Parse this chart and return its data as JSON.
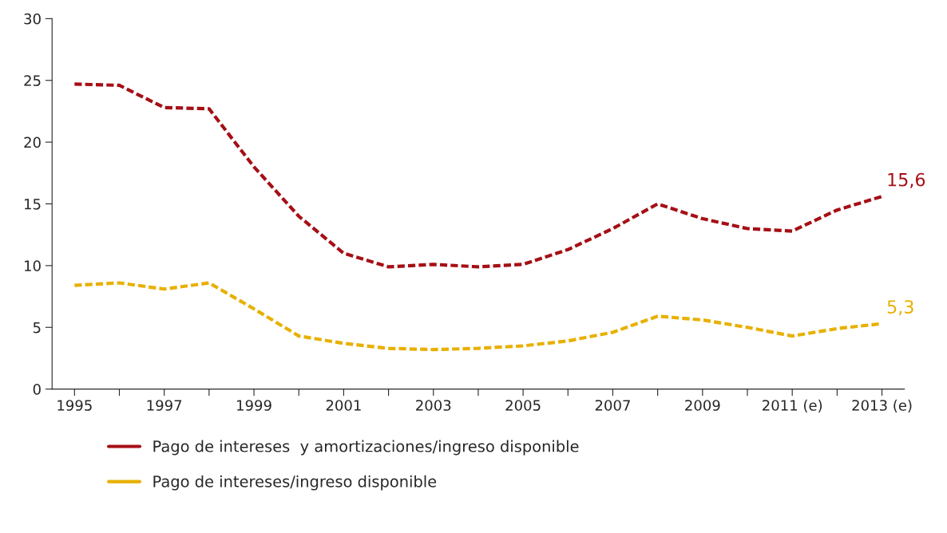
{
  "chart_data": {
    "type": "line",
    "categories": [
      "1995",
      null,
      "1997",
      null,
      "1999",
      null,
      "2001",
      null,
      "2003",
      null,
      "2005",
      null,
      "2007",
      null,
      "2009",
      null,
      "2011 (e)",
      null,
      "2013 (e)"
    ],
    "series": [
      {
        "name": "Pago de intereses  y amortizaciones/ingreso disponible",
        "color": "#a50f15",
        "values": [
          24.7,
          24.6,
          22.8,
          22.7,
          18.0,
          14.0,
          11.0,
          9.9,
          10.1,
          9.9,
          10.1,
          11.3,
          13.0,
          15.0,
          13.8,
          13.0,
          12.8,
          14.5,
          15.6
        ],
        "value_labels": [
          null,
          null,
          null,
          null,
          null,
          null,
          null,
          null,
          null,
          null,
          null,
          null,
          null,
          null,
          null,
          null,
          null,
          null,
          "15,6"
        ]
      },
      {
        "name": "Pago de intereses/ingreso disponible",
        "color": "#e8b000",
        "values": [
          8.4,
          8.6,
          8.1,
          8.6,
          6.5,
          4.3,
          3.7,
          3.3,
          3.2,
          3.3,
          3.5,
          3.9,
          4.6,
          5.9,
          5.6,
          5.0,
          4.3,
          4.9,
          5.3
        ],
        "value_labels": [
          null,
          null,
          null,
          null,
          null,
          null,
          null,
          null,
          null,
          null,
          null,
          null,
          null,
          null,
          null,
          null,
          null,
          null,
          "5,3"
        ]
      }
    ],
    "ylim": [
      0,
      30
    ],
    "yticks": [
      0,
      5,
      10,
      15,
      20,
      25,
      30
    ],
    "line_style": "dashed",
    "marker": "none",
    "grid": false,
    "legend": "bottom"
  }
}
